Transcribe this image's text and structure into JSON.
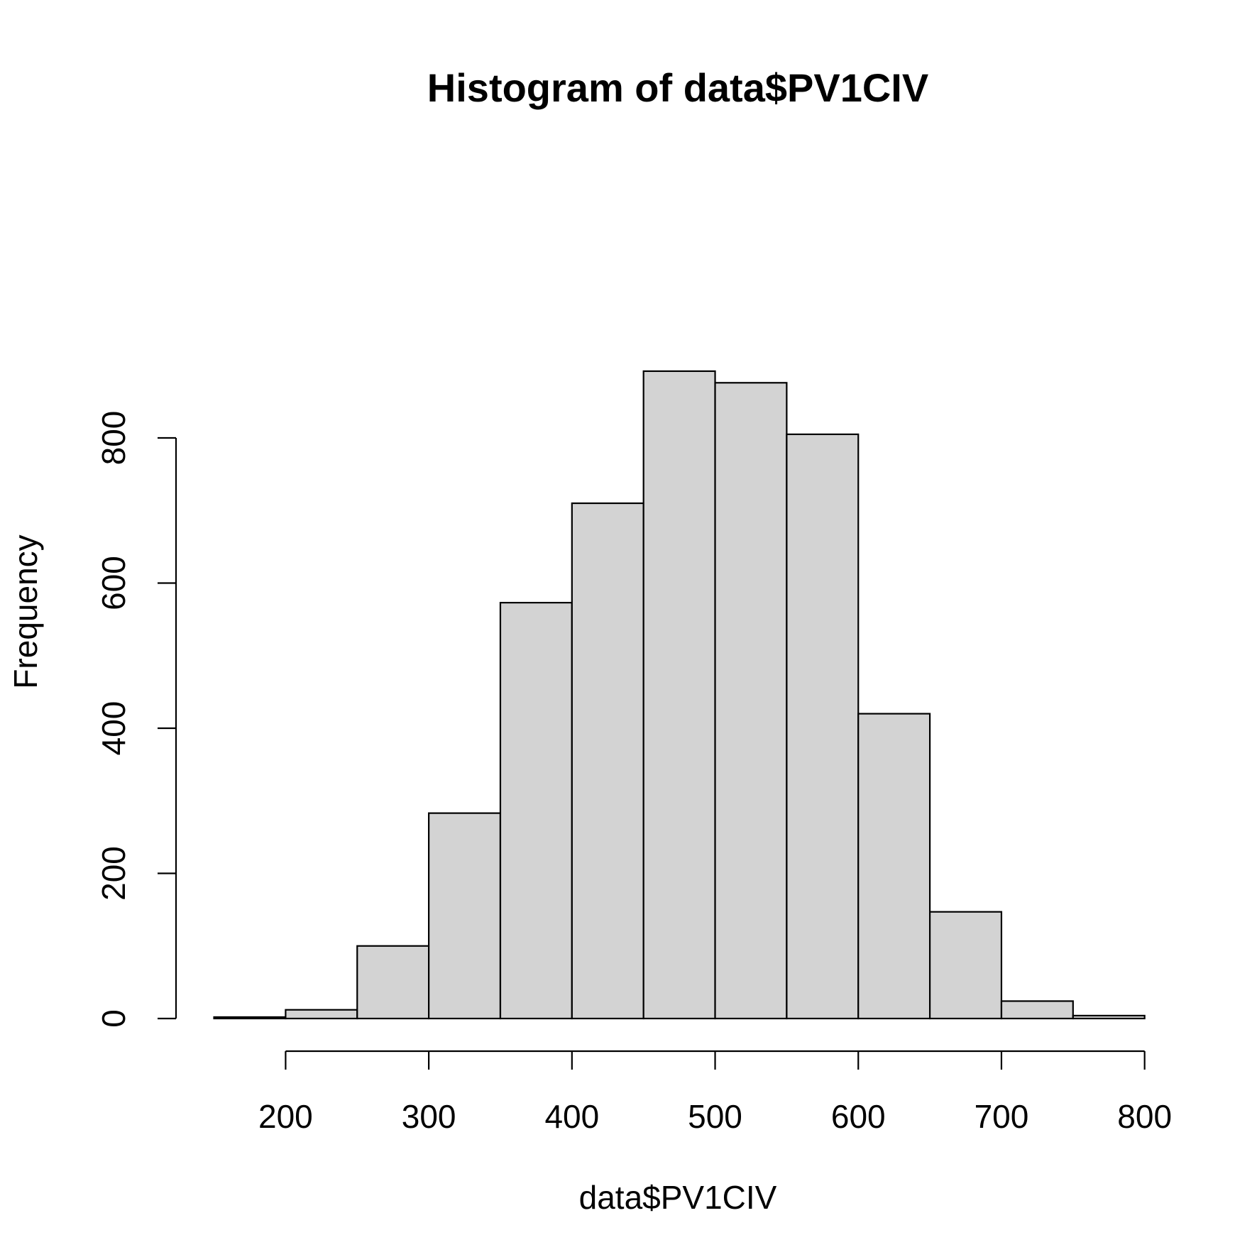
{
  "chart_data": {
    "type": "bar",
    "title": "Histogram of data$PV1CIV",
    "xlabel": "data$PV1CIV",
    "ylabel": "Frequency",
    "bins": [
      {
        "x0": 150,
        "x1": 200,
        "count": 2
      },
      {
        "x0": 200,
        "x1": 250,
        "count": 12
      },
      {
        "x0": 250,
        "x1": 300,
        "count": 100
      },
      {
        "x0": 300,
        "x1": 350,
        "count": 283
      },
      {
        "x0": 350,
        "x1": 400,
        "count": 573
      },
      {
        "x0": 400,
        "x1": 450,
        "count": 710
      },
      {
        "x0": 450,
        "x1": 500,
        "count": 892
      },
      {
        "x0": 500,
        "x1": 550,
        "count": 876
      },
      {
        "x0": 550,
        "x1": 600,
        "count": 805
      },
      {
        "x0": 600,
        "x1": 650,
        "count": 420
      },
      {
        "x0": 650,
        "x1": 700,
        "count": 147
      },
      {
        "x0": 700,
        "x1": 750,
        "count": 24
      },
      {
        "x0": 750,
        "x1": 800,
        "count": 4
      }
    ],
    "x_ticks": [
      200,
      300,
      400,
      500,
      600,
      700,
      800
    ],
    "y_ticks": [
      0,
      200,
      400,
      600,
      800
    ],
    "xlim": [
      150,
      800
    ],
    "ylim": [
      0,
      892
    ],
    "colors": {
      "bar_fill": "#d3d3d3",
      "bar_stroke": "#000000"
    },
    "grid": false
  }
}
